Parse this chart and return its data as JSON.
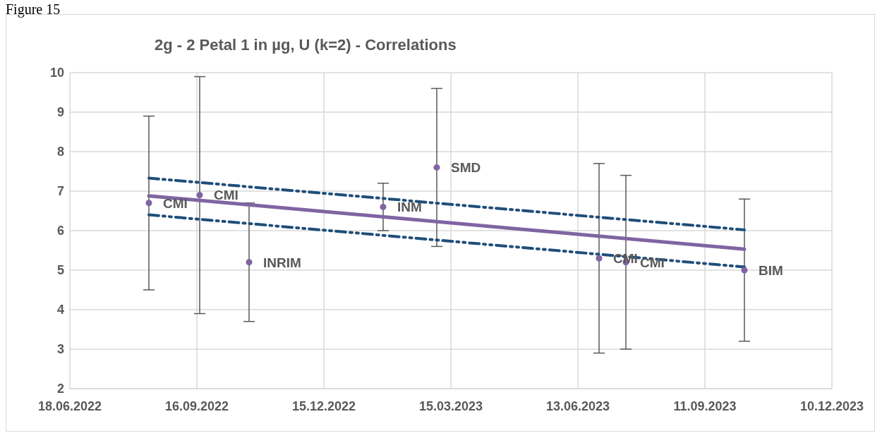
{
  "chart_data": {
    "type": "scatter",
    "title": "2g - 2 Petal 1 in µg, U (k=2) - Correlations",
    "annotations": [
      "Figure 15",
      {
        "text": "CMI",
        "x": "2022-08-13",
        "y": 6.7
      },
      {
        "text": "CMI",
        "x": "2022-09-18",
        "y": 6.9
      },
      {
        "text": "INRIM",
        "x": "2022-10-23",
        "y": 5.2
      },
      {
        "text": "INM",
        "x": "2023-01-26",
        "y": 6.6
      },
      {
        "text": "SMD",
        "x": "2023-03-05",
        "y": 7.6
      },
      {
        "text": "CMI",
        "x": "2023-06-28",
        "y": 5.3
      },
      {
        "text": "CMI",
        "x": "2023-07-17",
        "y": 5.2
      },
      {
        "text": "BIM",
        "x": "2023-10-09",
        "y": 5.0
      }
    ],
    "series": [
      {
        "color": "#8064a2",
        "x": [
          "2022-08-13",
          "2022-09-18",
          "2022-10-23",
          "2023-01-26",
          "2023-03-05",
          "2023-06-28",
          "2023-07-17",
          "2023-10-09"
        ],
        "values": [
          6.7,
          6.9,
          5.2,
          6.6,
          7.6,
          5.3,
          5.2,
          5.0
        ],
        "errors": [
          2.2,
          3.0,
          1.5,
          0.6,
          2.0,
          2.4,
          2.2,
          1.8
        ],
        "marker": "circle"
      },
      {
        "type": "line",
        "color": "#8064a2",
        "x": [
          "2022-08-13",
          "2023-10-09"
        ],
        "values": [
          6.88,
          5.53
        ],
        "line_style": "solid",
        "marker": "none"
      },
      {
        "type": "line",
        "color": "#1f4e79",
        "x": [
          "2022-08-13",
          "2023-10-09"
        ],
        "values": [
          7.33,
          6.02
        ],
        "line_style": "dashed",
        "marker": "none"
      },
      {
        "type": "line",
        "color": "#1f4e79",
        "x": [
          "2022-08-13",
          "2023-10-09"
        ],
        "values": [
          6.4,
          5.08
        ],
        "line_style": "dashed",
        "marker": "none"
      }
    ],
    "xlim": [
      "2022-06-18",
      "2023-12-10"
    ],
    "xticks": [
      {
        "value": "2022-06-18",
        "label": "18.06.2022"
      },
      {
        "value": "2022-09-16",
        "label": "16.09.2022"
      },
      {
        "value": "2022-12-15",
        "label": "15.12.2022"
      },
      {
        "value": "2023-03-15",
        "label": "15.03.2023"
      },
      {
        "value": "2023-06-13",
        "label": "13.06.2023"
      },
      {
        "value": "2023-09-11",
        "label": "11.09.2023"
      },
      {
        "value": "2023-12-10",
        "label": "10.12.2023"
      }
    ],
    "ylim": [
      2,
      10
    ],
    "yticks": [
      2,
      3,
      4,
      5,
      6,
      7,
      8,
      9,
      10
    ],
    "grid": true
  }
}
